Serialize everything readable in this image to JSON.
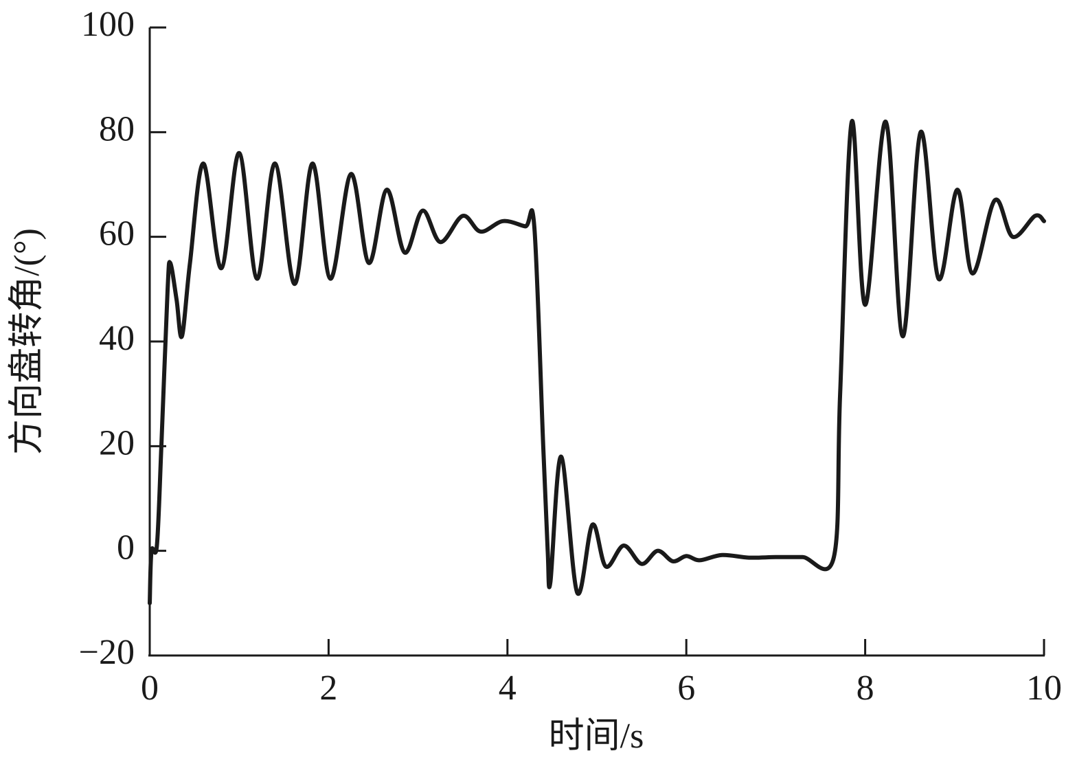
{
  "chart_data": {
    "type": "line",
    "x_label": "时间/s",
    "y_label": "方向盘转角/(°)",
    "x": [
      0,
      0.02,
      0.08,
      0.13,
      0.2,
      0.23,
      0.3,
      0.36,
      0.45,
      0.6,
      0.8,
      1.0,
      1.2,
      1.4,
      1.62,
      1.82,
      2.02,
      2.25,
      2.45,
      2.65,
      2.85,
      3.05,
      3.25,
      3.5,
      3.7,
      3.95,
      4.2,
      4.3,
      4.4,
      4.45,
      4.48,
      4.6,
      4.78,
      4.95,
      5.1,
      5.3,
      5.5,
      5.68,
      5.85,
      6.0,
      6.15,
      6.4,
      6.7,
      7.0,
      7.3,
      7.65,
      7.72,
      7.85,
      8.0,
      8.23,
      8.42,
      8.62,
      8.82,
      9.03,
      9.2,
      9.45,
      9.65,
      9.9,
      10.0
    ],
    "series": [
      {
        "color": "#1a1a1a",
        "values": [
          -10,
          0,
          1,
          20,
          50,
          55,
          48,
          41,
          55,
          74,
          54,
          76,
          52,
          74,
          51,
          74,
          52,
          72,
          55,
          69,
          57,
          65,
          59,
          64,
          61,
          63,
          62,
          62,
          20,
          0,
          -6,
          18,
          -8,
          5,
          -3,
          1,
          -2.5,
          0,
          -2,
          -1,
          -1.8,
          -0.8,
          -1.3,
          -1.2,
          -1.2,
          -1.2,
          30,
          82,
          47,
          82,
          41,
          80,
          52,
          69,
          53,
          67,
          60,
          64,
          63
        ]
      }
    ],
    "xlim": [
      0,
      10
    ],
    "xticks": [
      0,
      2,
      4,
      6,
      8,
      10
    ],
    "ylim": [
      -20,
      100
    ],
    "yticks": [
      {
        "value": -20,
        "label": "−20"
      },
      0,
      20,
      40,
      60,
      80,
      100
    ]
  }
}
